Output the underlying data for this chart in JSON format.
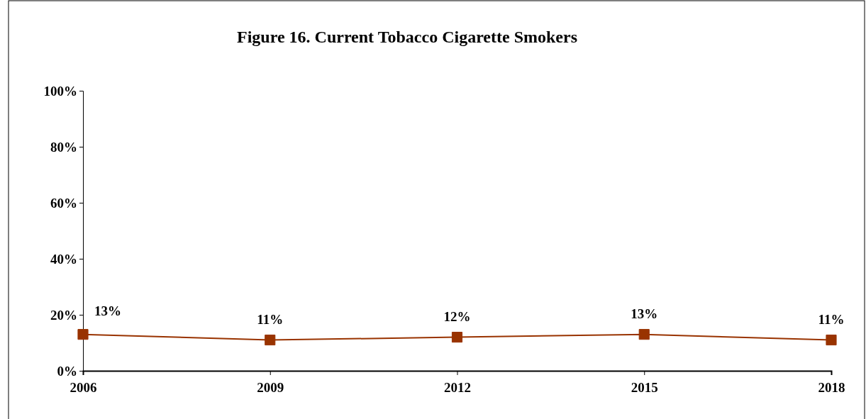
{
  "chart_data": {
    "type": "line",
    "title": "Figure 16. Current Tobacco Cigarette Smokers",
    "categories": [
      "2006",
      "2009",
      "2012",
      "2015",
      "2018"
    ],
    "values": [
      13,
      11,
      12,
      13,
      11
    ],
    "value_labels": [
      "13%",
      "11%",
      "12%",
      "13%",
      "11%"
    ],
    "color": "#993300",
    "marker": "square",
    "line_style": "solid",
    "ylim": [
      0,
      100
    ],
    "yticks": [
      {
        "value": 0,
        "label": "0%"
      },
      {
        "value": 20,
        "label": "20%"
      },
      {
        "value": 40,
        "label": "40%"
      },
      {
        "value": 60,
        "label": "60%"
      },
      {
        "value": 80,
        "label": "80%"
      },
      {
        "value": 100,
        "label": "100%"
      }
    ],
    "grid": false
  }
}
